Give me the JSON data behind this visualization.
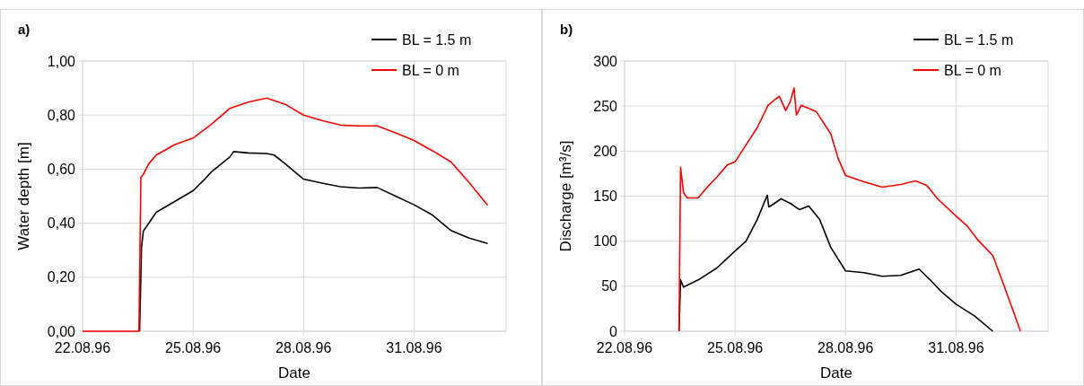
{
  "chart_data": [
    {
      "type": "line",
      "title": "a)",
      "xlabel": "Date",
      "ylabel": "Water depth [m]",
      "xlim": [
        "1996-08-22",
        "1996-09-02T12:00"
      ],
      "ylim": [
        0,
        1
      ],
      "xticks": [
        {
          "value": "1996-08-22",
          "label": "22.08.96"
        },
        {
          "value": "1996-08-25",
          "label": "25.08.96"
        },
        {
          "value": "1996-08-28",
          "label": "28.08.96"
        },
        {
          "value": "1996-08-31",
          "label": "31.08.96"
        }
      ],
      "yticks": [
        {
          "value": 0,
          "label": "0,00"
        },
        {
          "value": 0.2,
          "label": "0,20"
        },
        {
          "value": 0.4,
          "label": "0,40"
        },
        {
          "value": 0.6,
          "label": "0,60"
        },
        {
          "value": 0.8,
          "label": "0,80"
        },
        {
          "value": 1,
          "label": "1,00"
        }
      ],
      "grid": true,
      "legend": "top right",
      "marker": "none",
      "line_style": "solid",
      "series": [
        {
          "name": "BL = 1.5 m",
          "color": "#000000",
          "x": [
            "1996-08-23T13:10",
            "1996-08-23T14:25",
            "1996-08-23T15:35",
            "1996-08-24T00:00",
            "1996-08-24T12:00",
            "1996-08-25T00:00",
            "1996-08-25T07:10",
            "1996-08-25T12:00",
            "1996-08-26T00:00",
            "1996-08-26T02:25",
            "1996-08-26T12:00",
            "1996-08-27T00:00",
            "1996-08-27T04:50",
            "1996-08-27T12:00",
            "1996-08-28T00:00",
            "1996-08-28T12:00",
            "1996-08-29T00:00",
            "1996-08-29T12:00",
            "1996-08-30T00:00",
            "1996-08-30T12:00",
            "1996-08-31T00:00",
            "1996-08-31T12:00",
            "1996-09-01T00:00",
            "1996-09-01T12:00",
            "1996-09-02T00:00"
          ],
          "values": [
            0,
            0.31,
            0.37,
            0.44,
            0.48,
            0.52,
            0.56,
            0.59,
            0.645,
            0.665,
            0.66,
            0.658,
            0.652,
            0.62,
            0.563,
            0.548,
            0.535,
            0.53,
            0.532,
            0.5,
            0.468,
            0.43,
            0.373,
            0.345,
            0.325
          ]
        },
        {
          "name": "BL = 0 m",
          "color": "#ff0000",
          "x": [
            "1996-08-22T00:00",
            "1996-08-23T12:45",
            "1996-08-23T13:25",
            "1996-08-23T14:00",
            "1996-08-23T15:35",
            "1996-08-23T19:10",
            "1996-08-24T00:00",
            "1996-08-24T12:00",
            "1996-08-25T00:00",
            "1996-08-25T12:00",
            "1996-08-26T00:00",
            "1996-08-26T12:00",
            "1996-08-27T00:00",
            "1996-08-27T12:00",
            "1996-08-28T00:00",
            "1996-08-28T12:00",
            "1996-08-29T00:00",
            "1996-08-29T12:00",
            "1996-08-30T00:00",
            "1996-08-30T12:00",
            "1996-08-31T00:00",
            "1996-08-31T12:00",
            "1996-09-01T00:00",
            "1996-09-01T12:00",
            "1996-09-02T00:00"
          ],
          "values": [
            0,
            0,
            0.3,
            0.57,
            0.58,
            0.62,
            0.652,
            0.69,
            0.715,
            0.766,
            0.825,
            0.848,
            0.863,
            0.84,
            0.8,
            0.78,
            0.763,
            0.76,
            0.76,
            0.734,
            0.706,
            0.668,
            0.627,
            0.55,
            0.466
          ]
        }
      ]
    },
    {
      "type": "line",
      "title": "b)",
      "xlabel": "Date",
      "ylabel": "Discharge [m³/s]",
      "xlim": [
        "1996-08-22",
        "1996-09-02T12:00"
      ],
      "ylim": [
        0,
        300
      ],
      "xticks": [
        {
          "value": "1996-08-22",
          "label": "22.08.96"
        },
        {
          "value": "1996-08-25",
          "label": "25.08.96"
        },
        {
          "value": "1996-08-28",
          "label": "28.08.96"
        },
        {
          "value": "1996-08-31",
          "label": "31.08.96"
        }
      ],
      "yticks": [
        0,
        50,
        100,
        150,
        200,
        250,
        300
      ],
      "grid": true,
      "legend": "top right",
      "marker": "none",
      "line_style": "solid",
      "series": [
        {
          "name": "BL = 1.5 m",
          "color": "#000000",
          "x": [
            "1996-08-23T11:30",
            "1996-08-23T12:30",
            "1996-08-23T14:25",
            "1996-08-24T00:00",
            "1996-08-24T12:00",
            "1996-08-25T00:00",
            "1996-08-25T07:10",
            "1996-08-25T14:25",
            "1996-08-25T21:00",
            "1996-08-25T22:00",
            "1996-08-26T00:00",
            "1996-08-26T06:00",
            "1996-08-26T12:00",
            "1996-08-26T18:00",
            "1996-08-27T00:00",
            "1996-08-27T07:10",
            "1996-08-27T14:25",
            "1996-08-28T00:00",
            "1996-08-28T12:00",
            "1996-08-29T00:00",
            "1996-08-29T12:00",
            "1996-08-30T00:00",
            "1996-08-30T07:10",
            "1996-08-30T14:25",
            "1996-08-31T00:00",
            "1996-08-31T12:00",
            "1996-09-01T00:00"
          ],
          "values": [
            0,
            57,
            49,
            57,
            70,
            89,
            100,
            124,
            151,
            138,
            140,
            147,
            142,
            135,
            139,
            124,
            93,
            67,
            65,
            61,
            62,
            69,
            57,
            44,
            30,
            17,
            0
          ]
        },
        {
          "name": "BL = 0 m",
          "color": "#ff0000",
          "x": [
            "1996-08-23T11:30",
            "1996-08-23T12:30",
            "1996-08-23T14:25",
            "1996-08-23T16:50",
            "1996-08-24T00:00",
            "1996-08-24T04:50",
            "1996-08-24T12:00",
            "1996-08-24T19:10",
            "1996-08-25T00:00",
            "1996-08-25T07:10",
            "1996-08-25T14:25",
            "1996-08-25T21:35",
            "1996-08-26T04:50",
            "1996-08-26T09:00",
            "1996-08-26T12:00",
            "1996-08-26T14:25",
            "1996-08-26T16:00",
            "1996-08-26T19:10",
            "1996-08-27T04:50",
            "1996-08-27T14:25",
            "1996-08-27T19:10",
            "1996-08-28T00:00",
            "1996-08-28T12:00",
            "1996-08-29T00:00",
            "1996-08-29T12:00",
            "1996-08-29T21:35",
            "1996-08-30T04:50",
            "1996-08-30T12:00",
            "1996-08-31T00:00",
            "1996-08-31T07:10",
            "1996-08-31T14:25",
            "1996-09-01T00:00",
            "1996-09-01T07:10",
            "1996-09-01T14:25",
            "1996-09-01T18:00"
          ],
          "values": [
            0,
            182,
            154,
            148,
            148,
            158,
            171,
            185,
            188,
            207,
            226,
            251,
            261,
            245,
            255,
            270,
            240,
            251,
            244,
            219,
            192,
            173,
            166,
            160,
            163,
            167,
            162,
            147,
            128,
            117,
            101,
            84,
            51,
            17,
            0
          ]
        }
      ]
    }
  ]
}
